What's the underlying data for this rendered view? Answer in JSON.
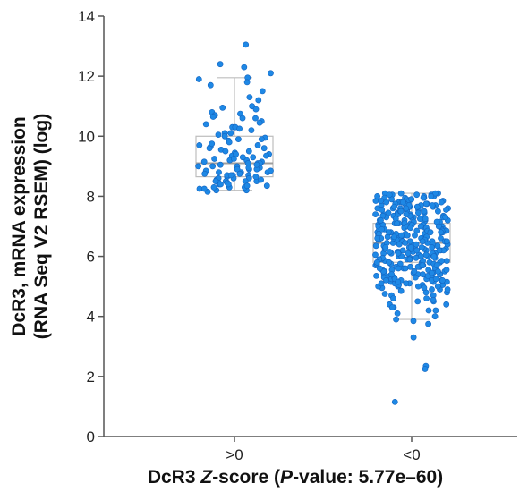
{
  "chart_data": {
    "type": "scatter",
    "subtype": "box-with-jittered-points",
    "title": "",
    "xlabel_parts": [
      {
        "text": "DcR3 ",
        "italic": false
      },
      {
        "text": "Z",
        "italic": true
      },
      {
        "text": "-score (",
        "italic": false
      },
      {
        "text": "P",
        "italic": true
      },
      {
        "text": "-value: 5.77e–60)",
        "italic": false
      }
    ],
    "ylabel_lines": [
      "DcR3, mRNA expression",
      "(RNA Seq V2 RSEM) (log)"
    ],
    "categories": [
      ">0",
      "<0"
    ],
    "ylim": [
      0,
      14
    ],
    "yticks": [
      0,
      2,
      4,
      6,
      8,
      10,
      12,
      14
    ],
    "grid": false,
    "colors": {
      "point": "#1e88e5",
      "point_edge": "#1565c0",
      "box": "#bdbdbd",
      "median": "#9e9e9e",
      "axis": "#555555"
    },
    "groups": [
      {
        "name": ">0",
        "box": {
          "whisker_low": 8.2,
          "q1": 8.65,
          "median": 9.1,
          "q3": 10.0,
          "whisker_high": 11.95
        },
        "points": [
          13.05,
          12.4,
          12.3,
          12.1,
          11.95,
          11.8,
          11.7,
          11.5,
          11.3,
          11.2,
          11.0,
          10.95,
          10.9,
          10.8,
          10.75,
          10.7,
          10.65,
          10.6,
          10.5,
          10.45,
          10.4,
          10.3,
          10.2,
          10.1,
          10.05,
          10.0,
          9.95,
          9.9,
          9.85,
          9.8,
          9.7,
          9.65,
          9.6,
          9.55,
          9.5,
          9.45,
          9.4,
          9.35,
          9.3,
          9.25,
          9.2,
          9.15,
          9.1,
          9.05,
          9.0,
          8.95,
          8.9,
          8.85,
          8.8,
          8.75,
          8.7,
          8.65,
          8.6,
          8.55,
          8.5,
          8.45,
          8.4,
          8.35,
          8.3,
          8.25,
          8.2,
          8.15,
          9.2,
          9.0,
          8.8,
          8.6,
          8.4,
          8.3,
          8.5,
          8.7,
          8.9,
          9.1,
          9.3,
          9.5,
          9.7,
          9.9,
          10.1,
          10.3,
          8.2,
          8.4,
          8.6,
          8.8,
          9.0,
          9.4,
          9.6,
          10.6,
          11.9,
          8.3,
          8.5,
          8.7,
          8.9,
          9.1,
          8.45,
          8.65,
          8.85,
          9.25,
          9.75,
          10.25,
          8.35,
          8.55,
          8.75,
          8.95,
          9.15,
          9.35,
          8.25,
          8.5,
          8.7,
          9.05,
          8.4
        ]
      },
      {
        "name": "<0",
        "box": {
          "whisker_low": 3.9,
          "q1": 5.8,
          "median": 6.45,
          "q3": 7.1,
          "whisker_high": 8.1
        },
        "points": [
          8.1,
          8.05,
          8.0,
          7.95,
          7.9,
          7.85,
          7.8,
          7.75,
          7.7,
          7.65,
          7.6,
          7.55,
          7.5,
          7.45,
          7.4,
          7.35,
          7.3,
          7.25,
          7.2,
          7.15,
          7.1,
          7.05,
          7.0,
          6.95,
          6.9,
          6.85,
          6.8,
          6.75,
          6.7,
          6.65,
          6.6,
          6.55,
          6.5,
          6.45,
          6.4,
          6.35,
          6.3,
          6.25,
          6.2,
          6.15,
          6.1,
          6.05,
          6.0,
          5.95,
          5.9,
          5.85,
          5.8,
          5.75,
          5.7,
          5.65,
          5.6,
          5.55,
          5.5,
          5.45,
          5.4,
          5.35,
          5.3,
          5.25,
          5.2,
          5.15,
          5.1,
          5.05,
          5.0,
          4.95,
          4.9,
          4.85,
          4.8,
          4.7,
          4.6,
          4.5,
          4.4,
          4.3,
          4.2,
          4.1,
          4.0,
          3.9,
          3.85,
          3.75,
          3.3,
          2.35,
          2.25,
          1.15,
          8.1,
          8.05,
          8.0,
          7.95,
          7.9,
          7.85,
          7.8,
          7.75,
          7.7,
          7.65,
          7.6,
          7.55,
          7.5,
          7.45,
          7.4,
          7.35,
          7.3,
          7.25,
          7.2,
          7.15,
          7.1,
          7.05,
          7.0,
          6.95,
          6.9,
          6.85,
          6.8,
          6.75,
          6.7,
          6.65,
          6.6,
          6.55,
          6.5,
          6.45,
          6.4,
          6.35,
          6.3,
          6.25,
          6.2,
          6.15,
          6.1,
          6.05,
          6.0,
          5.95,
          5.9,
          5.85,
          5.8,
          5.75,
          5.7,
          5.65,
          5.6,
          5.55,
          5.5,
          5.45,
          5.4,
          5.35,
          5.3,
          5.25,
          5.2,
          5.15,
          5.1,
          5.05,
          5.0,
          4.9,
          4.8,
          4.6,
          4.4,
          4.2,
          8.1,
          8.0,
          7.9,
          7.8,
          7.7,
          7.6,
          7.5,
          7.4,
          7.3,
          7.2,
          7.1,
          7.0,
          6.9,
          6.8,
          6.7,
          6.6,
          6.5,
          6.4,
          6.3,
          6.2,
          6.1,
          6.0,
          5.9,
          5.8,
          5.7,
          5.6,
          5.5,
          5.4,
          5.3,
          5.2,
          5.1,
          5.0,
          4.9,
          4.7,
          4.5,
          4.3,
          8.05,
          7.95,
          7.85,
          7.75,
          7.65,
          7.55,
          7.45,
          7.35,
          7.25,
          7.15,
          7.05,
          6.95,
          6.85,
          6.75,
          6.65,
          6.55,
          6.45,
          6.35,
          6.25,
          6.15,
          6.05,
          5.95,
          5.85,
          5.75,
          5.65,
          5.55,
          5.45,
          5.35,
          5.25,
          5.15,
          5.05,
          4.95,
          4.75,
          4.55,
          8.1,
          8.0,
          7.9,
          7.8,
          7.7,
          7.6,
          7.5,
          7.4,
          7.3,
          7.2,
          7.1,
          7.0,
          6.9,
          6.8,
          6.7,
          6.6,
          6.5,
          6.4,
          6.3,
          6.2,
          6.1,
          6.0,
          5.9,
          5.8,
          5.7,
          5.6,
          5.5,
          5.4,
          5.3,
          5.2,
          5.1,
          5.0,
          8.05,
          7.95,
          7.85,
          7.75,
          7.65,
          7.55,
          7.45,
          7.35,
          7.25,
          7.15,
          7.05,
          6.95,
          6.85,
          6.75,
          6.65,
          6.55,
          6.45,
          6.35,
          6.25,
          6.15,
          6.05,
          5.95,
          5.85,
          5.75,
          5.65,
          5.55,
          5.45,
          5.35,
          5.25,
          5.15,
          7.8,
          7.6,
          7.4,
          7.2,
          7.0,
          6.8,
          6.6,
          6.4,
          6.2,
          6.0,
          5.8,
          5.6,
          5.4,
          5.2,
          7.7,
          7.5,
          7.3,
          7.1,
          6.9,
          6.7,
          6.5,
          6.3,
          6.1,
          5.9,
          5.7,
          5.5,
          6.6,
          6.4,
          6.2,
          6.8,
          7.0,
          6.0,
          6.5,
          6.3,
          6.7,
          6.1
        ]
      }
    ]
  }
}
